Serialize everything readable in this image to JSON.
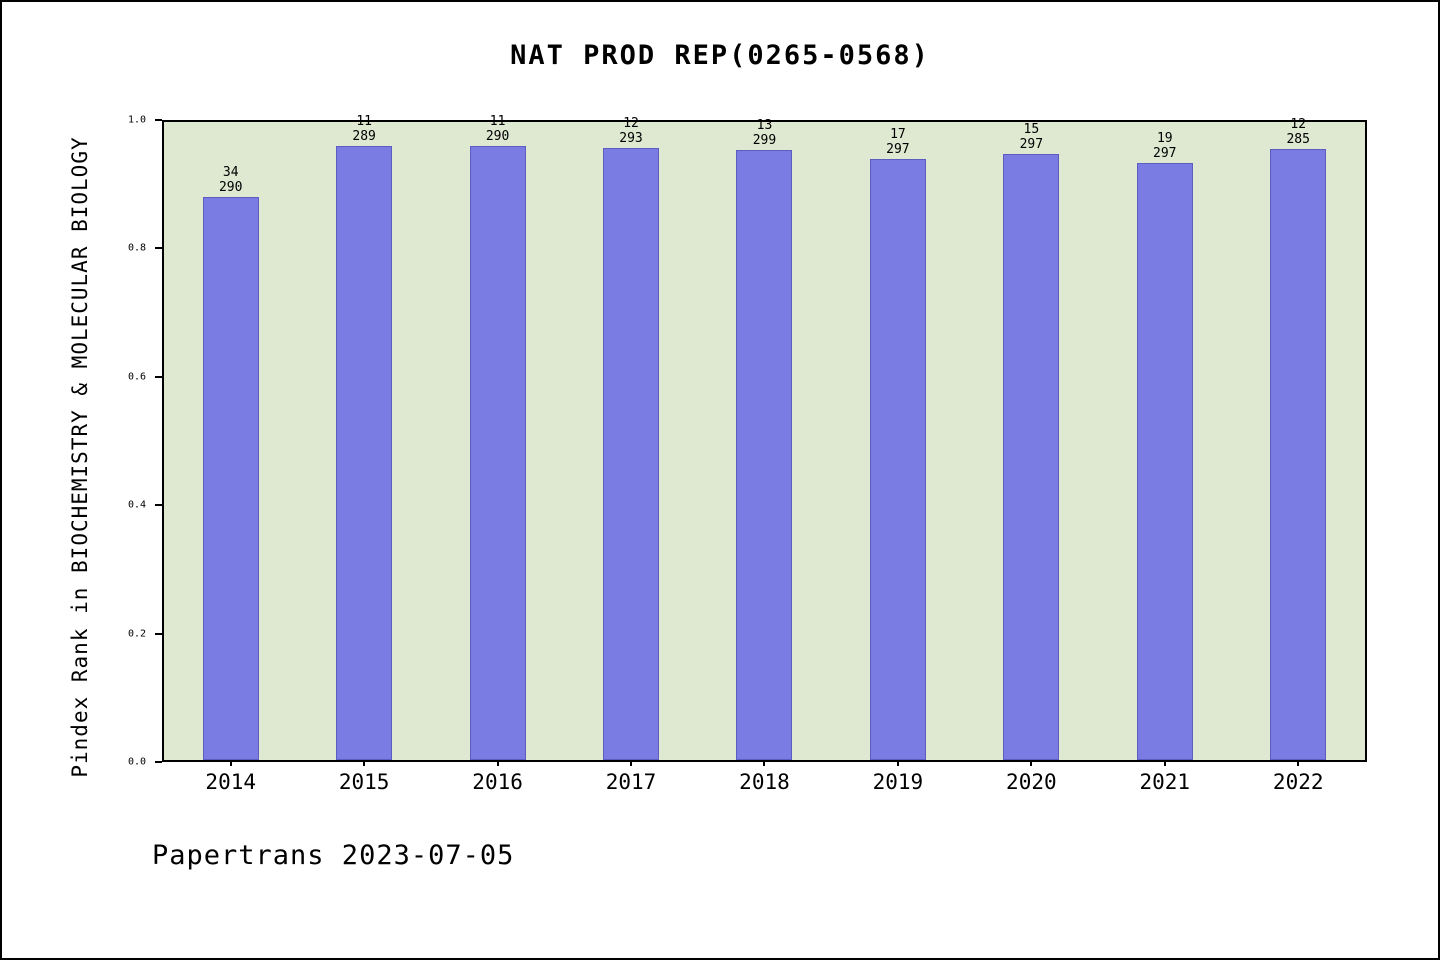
{
  "chart_data": {
    "type": "bar",
    "title": "NAT PROD REP(0265-0568)",
    "ylabel": "Pindex Rank in BIOCHEMISTRY & MOLECULAR BIOLOGY",
    "xlabel": "",
    "ylim": [
      0.0,
      1.0
    ],
    "yticks": [
      0.0,
      0.2,
      0.4,
      0.6,
      0.8,
      1.0
    ],
    "categories": [
      "2014",
      "2015",
      "2016",
      "2017",
      "2018",
      "2019",
      "2020",
      "2021",
      "2022"
    ],
    "series": [
      {
        "name": "Pindex Rank fraction",
        "values": [
          0.8828,
          0.9619,
          0.9621,
          0.959,
          0.9565,
          0.9428,
          0.9495,
          0.936,
          0.9579
        ]
      }
    ],
    "bar_labels": [
      {
        "rank": "34",
        "total": "290"
      },
      {
        "rank": "11",
        "total": "289"
      },
      {
        "rank": "11",
        "total": "290"
      },
      {
        "rank": "12",
        "total": "293"
      },
      {
        "rank": "13",
        "total": "299"
      },
      {
        "rank": "17",
        "total": "297"
      },
      {
        "rank": "15",
        "total": "297"
      },
      {
        "rank": "19",
        "total": "297"
      },
      {
        "rank": "12",
        "total": "285"
      }
    ],
    "bar_color": "#7b7be4",
    "plot_bg": "#dfe8d1",
    "grid": "off",
    "legend": "off"
  },
  "footer": {
    "text": "Papertrans 2023-07-05"
  }
}
